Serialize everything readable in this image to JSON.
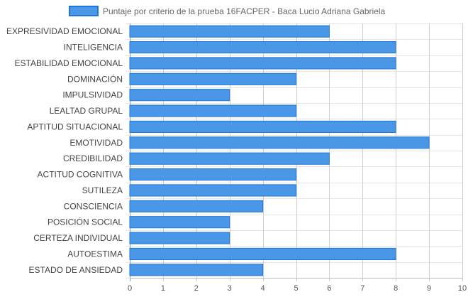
{
  "chart_data": {
    "type": "bar",
    "orientation": "horizontal",
    "categories": [
      "EXPRESIVIDAD EMOCIONAL",
      "INTELIGENCIA",
      "ESTABILIDAD EMOCIONAL",
      "DOMINACIÓN",
      "IMPULSIVIDAD",
      "LEALTAD GRUPAL",
      "APTITUD SITUACIONAL",
      "EMOTIVIDAD",
      "CREDIBILIDAD",
      "ACTITUD COGNITIVA",
      "SUTILEZA",
      "CONSCIENCIA",
      "POSICIÓN SOCIAL",
      "CERTEZA INDIVIDUAL",
      "AUTOESTIMA",
      "ESTADO DE ANSIEDAD"
    ],
    "series": [
      {
        "name": "Puntaje por criterio de la prueba 16FACPER - Baca Lucio Adriana Gabriela",
        "values": [
          6,
          8,
          8,
          5,
          3,
          5,
          8,
          9,
          6,
          5,
          5,
          4,
          3,
          3,
          8,
          4
        ],
        "color": "#4a97e8",
        "border_color": "#1f78d9"
      }
    ],
    "xlim": [
      0,
      10
    ],
    "xticks": [
      0,
      1,
      2,
      3,
      4,
      5,
      6,
      7,
      8,
      9,
      10
    ],
    "grid": true,
    "legend_position": "top"
  }
}
